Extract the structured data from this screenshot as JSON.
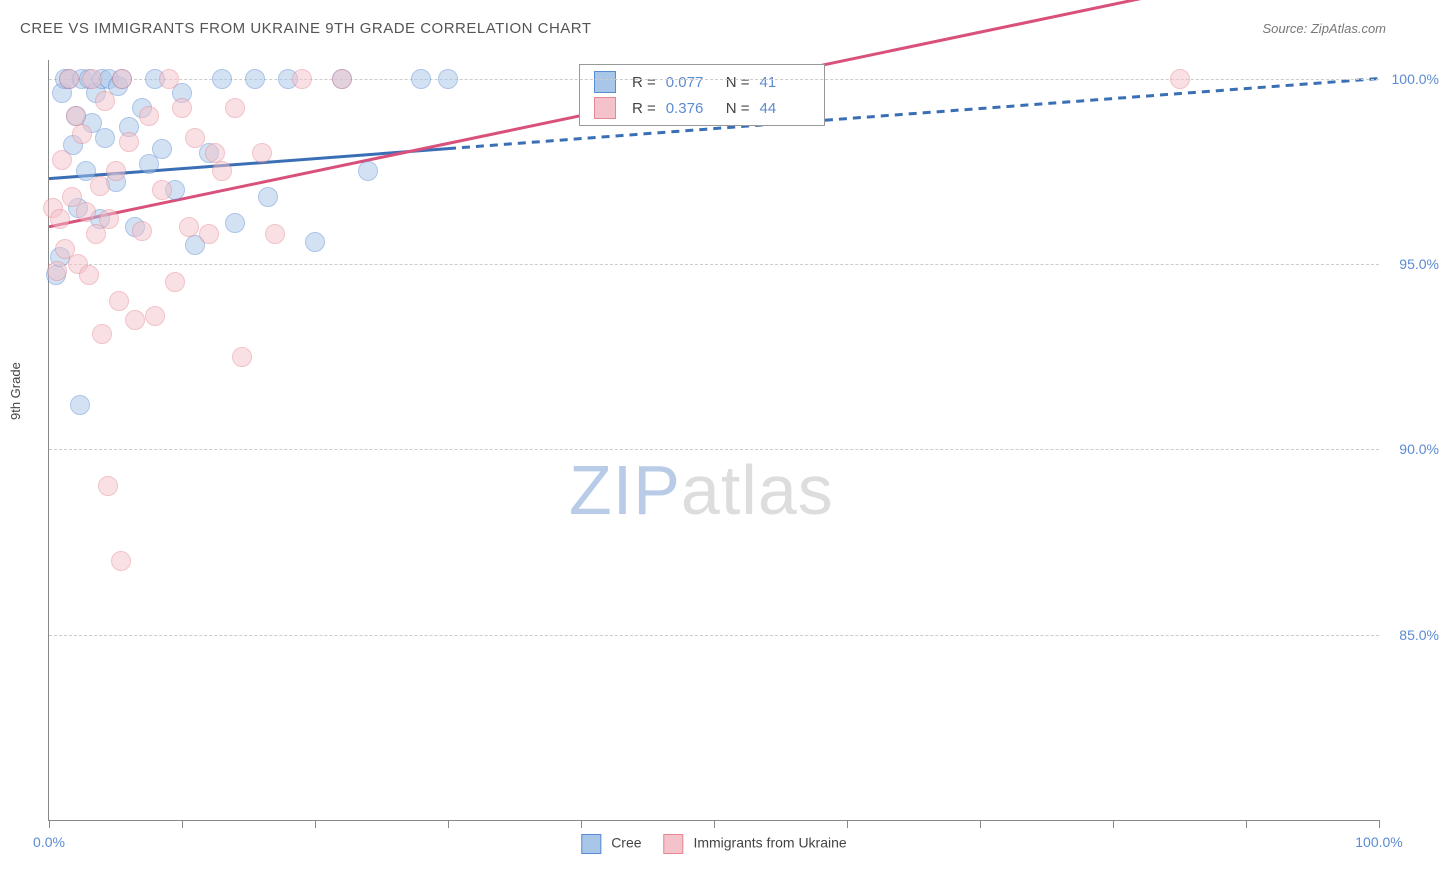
{
  "title": "CREE VS IMMIGRANTS FROM UKRAINE 9TH GRADE CORRELATION CHART",
  "source": "Source: ZipAtlas.com",
  "y_axis_label": "9th Grade",
  "watermark": {
    "part1": "ZIP",
    "part2": "atlas"
  },
  "colors": {
    "blue_fill": "#a8c6e8",
    "blue_stroke": "#5b8bd4",
    "pink_fill": "#f4c2cb",
    "pink_stroke": "#e6888f",
    "blue_line": "#3b6fb5",
    "pink_line": "#d9517a",
    "grid": "#cccccc",
    "axis": "#888888",
    "tick_text": "#5b8bd4",
    "title_text": "#555555",
    "source_text": "#777777"
  },
  "chart": {
    "type": "scatter",
    "xlim": [
      0,
      100
    ],
    "ylim": [
      80,
      100.5
    ],
    "y_gridlines": [
      {
        "value": 85,
        "label": "85.0%"
      },
      {
        "value": 90,
        "label": "90.0%"
      },
      {
        "value": 95,
        "label": "95.0%"
      },
      {
        "value": 100,
        "label": "100.0%"
      }
    ],
    "x_ticks": [
      0,
      10,
      20,
      30,
      40,
      50,
      60,
      70,
      80,
      90,
      100
    ],
    "x_tick_labels": [
      {
        "value": 0,
        "label": "0.0%"
      },
      {
        "value": 100,
        "label": "100.0%"
      }
    ],
    "marker_radius": 9,
    "marker_opacity": 0.5,
    "line_width_blue": 3,
    "line_width_pink": 3
  },
  "series": [
    {
      "name": "Cree",
      "color_fill": "#a8c6e8",
      "color_stroke": "#5b8bd4",
      "R": "0.077",
      "N": "41",
      "trend": {
        "y_at_x0": 97.3,
        "y_at_x100": 100.0,
        "solid_until_x": 30,
        "dash_pattern": "8,6"
      },
      "points": [
        [
          0.5,
          94.7
        ],
        [
          0.8,
          95.2
        ],
        [
          1.0,
          99.6
        ],
        [
          1.2,
          100.0
        ],
        [
          1.5,
          100.0
        ],
        [
          1.8,
          98.2
        ],
        [
          2.0,
          99.0
        ],
        [
          2.2,
          96.5
        ],
        [
          2.5,
          100.0
        ],
        [
          2.8,
          97.5
        ],
        [
          2.3,
          91.2
        ],
        [
          3.0,
          100.0
        ],
        [
          3.2,
          98.8
        ],
        [
          3.5,
          99.6
        ],
        [
          3.8,
          96.2
        ],
        [
          4.0,
          100.0
        ],
        [
          4.2,
          98.4
        ],
        [
          4.5,
          100.0
        ],
        [
          5.0,
          97.2
        ],
        [
          5.2,
          99.8
        ],
        [
          5.5,
          100.0
        ],
        [
          6.0,
          98.7
        ],
        [
          6.5,
          96.0
        ],
        [
          7.0,
          99.2
        ],
        [
          7.5,
          97.7
        ],
        [
          8.0,
          100.0
        ],
        [
          8.5,
          98.1
        ],
        [
          9.5,
          97.0
        ],
        [
          10.0,
          99.6
        ],
        [
          11.0,
          95.5
        ],
        [
          12.0,
          98.0
        ],
        [
          13.0,
          100.0
        ],
        [
          14.0,
          96.1
        ],
        [
          15.5,
          100.0
        ],
        [
          16.5,
          96.8
        ],
        [
          18.0,
          100.0
        ],
        [
          20.0,
          95.6
        ],
        [
          22.0,
          100.0
        ],
        [
          24.0,
          97.5
        ],
        [
          28.0,
          100.0
        ],
        [
          30.0,
          100.0
        ]
      ]
    },
    {
      "name": "Immigrants from Ukraine",
      "color_fill": "#f4c2cb",
      "color_stroke": "#e6888f",
      "R": "0.376",
      "N": "44",
      "trend": {
        "y_at_x0": 96.0,
        "y_at_x100": 103.5,
        "solid_until_x": 100,
        "dash_pattern": ""
      },
      "points": [
        [
          0.3,
          96.5
        ],
        [
          0.6,
          94.8
        ],
        [
          0.8,
          96.2
        ],
        [
          1.0,
          97.8
        ],
        [
          1.2,
          95.4
        ],
        [
          1.5,
          100.0
        ],
        [
          1.7,
          96.8
        ],
        [
          2.0,
          99.0
        ],
        [
          2.2,
          95.0
        ],
        [
          2.5,
          98.5
        ],
        [
          2.8,
          96.4
        ],
        [
          3.0,
          94.7
        ],
        [
          3.2,
          100.0
        ],
        [
          3.5,
          95.8
        ],
        [
          3.8,
          97.1
        ],
        [
          4.0,
          93.1
        ],
        [
          4.2,
          99.4
        ],
        [
          4.5,
          96.2
        ],
        [
          4.4,
          89.0
        ],
        [
          5.0,
          97.5
        ],
        [
          5.3,
          94.0
        ],
        [
          5.5,
          100.0
        ],
        [
          5.4,
          87.0
        ],
        [
          6.0,
          98.3
        ],
        [
          6.5,
          93.5
        ],
        [
          7.0,
          95.9
        ],
        [
          7.5,
          99.0
        ],
        [
          8.0,
          93.6
        ],
        [
          8.5,
          97.0
        ],
        [
          9.0,
          100.0
        ],
        [
          9.5,
          94.5
        ],
        [
          10.0,
          99.2
        ],
        [
          10.5,
          96.0
        ],
        [
          11.0,
          98.4
        ],
        [
          12.0,
          95.8
        ],
        [
          12.5,
          98.0
        ],
        [
          13.0,
          97.5
        ],
        [
          14.0,
          99.2
        ],
        [
          14.5,
          92.5
        ],
        [
          16.0,
          98.0
        ],
        [
          17.0,
          95.8
        ],
        [
          19.0,
          100.0
        ],
        [
          22.0,
          100.0
        ],
        [
          85.0,
          100.0
        ]
      ]
    }
  ],
  "legend_bottom": [
    {
      "label": "Cree",
      "fill": "#a8c6e8",
      "stroke": "#5b8bd4"
    },
    {
      "label": "Immigrants from Ukraine",
      "fill": "#f4c2cb",
      "stroke": "#e6888f"
    }
  ],
  "stats_labels": {
    "R": "R =",
    "N": "N ="
  }
}
